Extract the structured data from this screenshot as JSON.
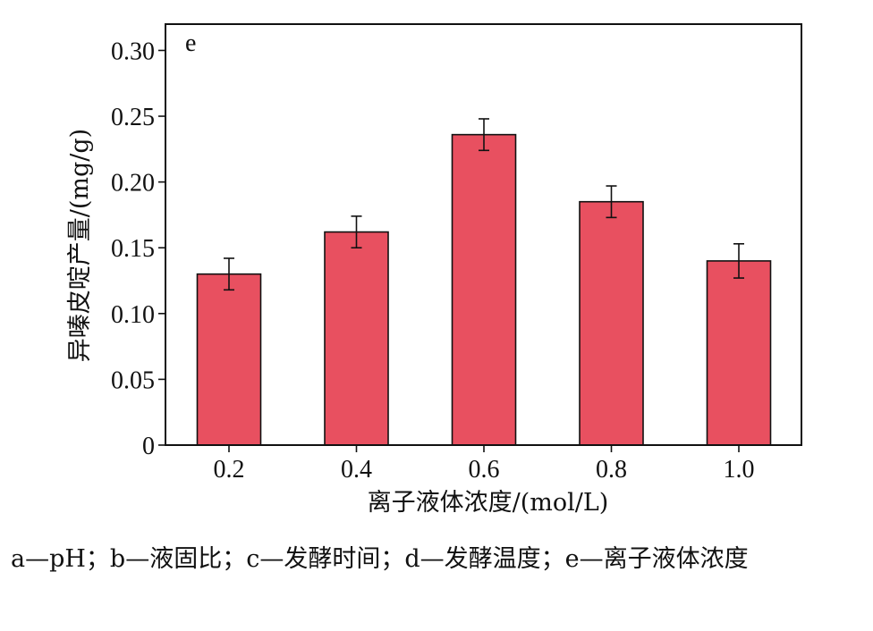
{
  "chart_data": {
    "type": "bar",
    "panel_label": "e",
    "categories": [
      "0.2",
      "0.4",
      "0.6",
      "0.8",
      "1.0"
    ],
    "values": [
      0.13,
      0.162,
      0.236,
      0.185,
      0.14
    ],
    "errors": [
      0.012,
      0.012,
      0.012,
      0.012,
      0.013
    ],
    "xlabel": "离子液体浓度/(mol/L)",
    "ylabel": "异嗪皮啶产量/(mg/g)",
    "ylim": [
      0,
      0.32
    ],
    "yticks": [
      0,
      0.05,
      0.1,
      0.15,
      0.2,
      0.25,
      0.3
    ],
    "ytick_labels": [
      "0",
      "0.05",
      "0.10",
      "0.15",
      "0.20",
      "0.25",
      "0.30"
    ],
    "bar_color": "#e85060",
    "grid": false,
    "legend": "none"
  },
  "caption": "a—pH；b—液固比；c—发酵时间；d—发酵温度；e—离子液体浓度"
}
